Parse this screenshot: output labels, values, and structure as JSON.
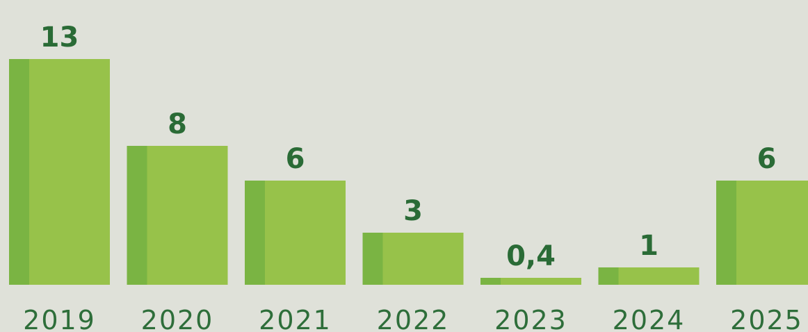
{
  "chart_data": {
    "type": "bar",
    "categories": [
      "2019",
      "2020",
      "2021",
      "2022",
      "2023",
      "2024",
      "2025"
    ],
    "values": [
      13,
      8,
      6,
      3,
      0.4,
      1,
      6
    ],
    "value_labels": [
      "13",
      "8",
      "6",
      "3",
      "0,4",
      "1",
      "6"
    ],
    "title": "",
    "xlabel": "",
    "ylabel": "",
    "ylim": [
      0,
      13
    ],
    "grid": false,
    "legend": "none",
    "colors": {
      "background": "#dfe1d9",
      "bar": "#97c24a",
      "bar_edge": "#7ab443",
      "value_text": "#2a6b36",
      "tick_text": "#2e6e3a"
    }
  }
}
